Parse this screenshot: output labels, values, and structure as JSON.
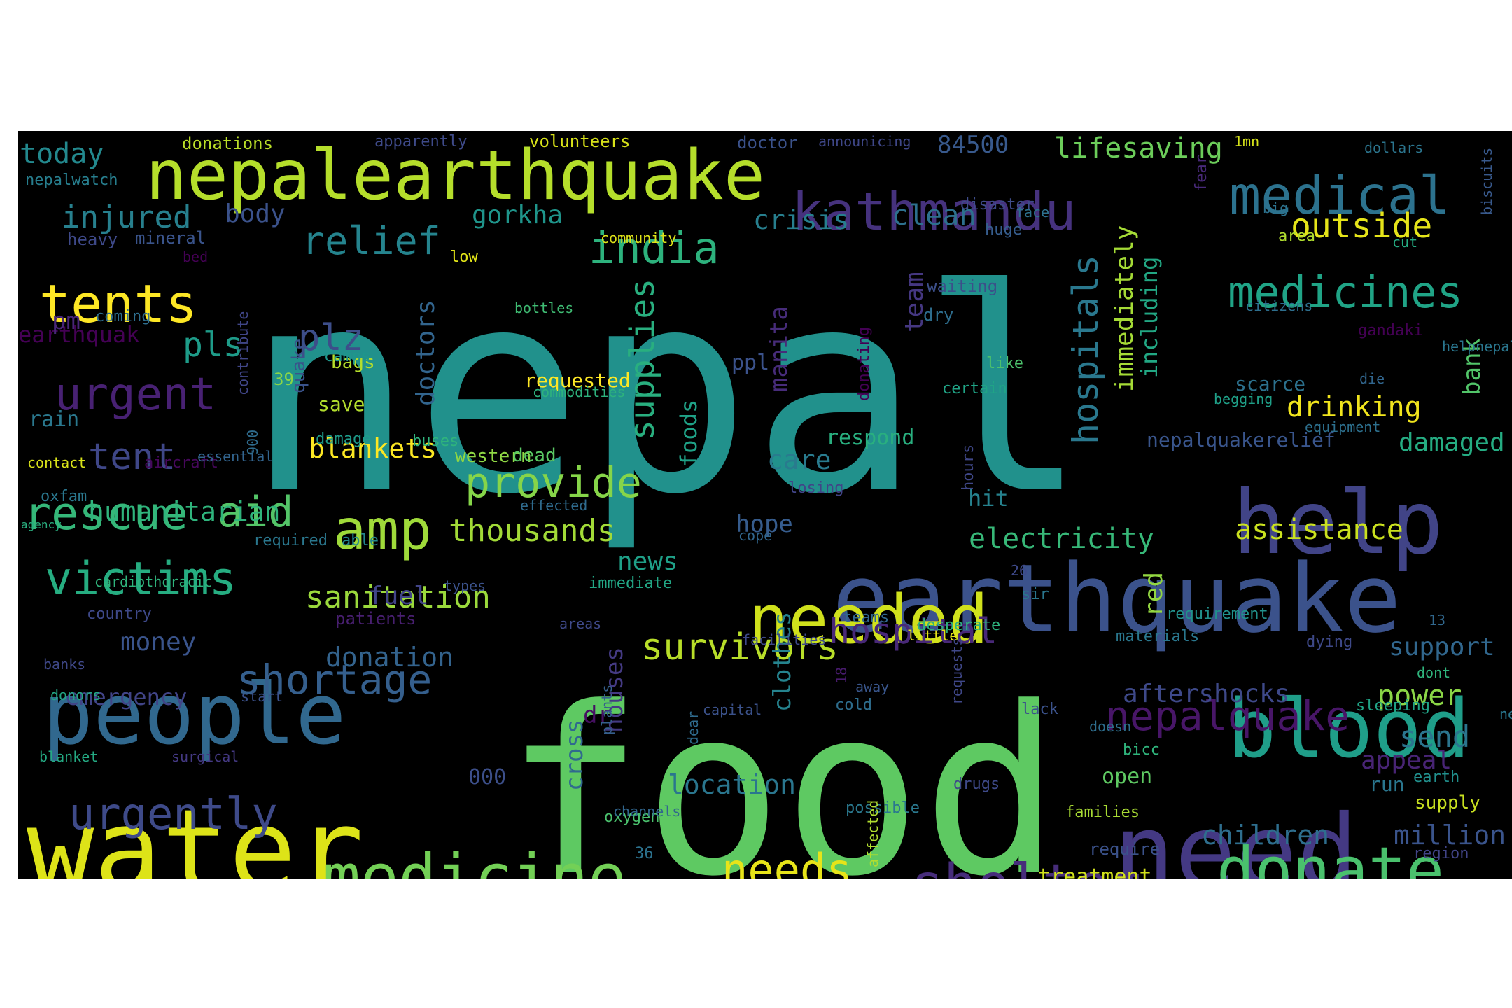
{
  "figure": {
    "background": "#000000",
    "page_background": "#ffffff",
    "colormap": "viridis"
  },
  "words": [
    {
      "text": "nepal",
      "color": "#21918c"
    },
    {
      "text": "food",
      "color": "#5ec962"
    },
    {
      "text": "water",
      "color": "#dde318"
    },
    {
      "text": "earthquake",
      "color": "#3b528b"
    },
    {
      "text": "need",
      "color": "#443983"
    },
    {
      "text": "people",
      "color": "#31688e"
    },
    {
      "text": "help",
      "color": "#414487"
    },
    {
      "text": "blood",
      "color": "#1f9e89"
    },
    {
      "text": "nepalearthquake",
      "color": "#b5de2b"
    },
    {
      "text": "kathmandu",
      "color": "#46327e"
    },
    {
      "text": "medical",
      "color": "#2c728e"
    },
    {
      "text": "needed",
      "color": "#d0e11c"
    },
    {
      "text": "donate",
      "color": "#4ac16d"
    },
    {
      "text": "medicine",
      "color": "#73d056"
    },
    {
      "text": "shelter",
      "color": "#472d7b"
    },
    {
      "text": "amp",
      "color": "#9fda3a"
    },
    {
      "text": "tents",
      "color": "#fde725"
    },
    {
      "text": "urgent",
      "color": "#482173"
    },
    {
      "text": "rescue",
      "color": "#35b779"
    },
    {
      "text": "victims",
      "color": "#26ad81"
    },
    {
      "text": "urgently",
      "color": "#3e4a89"
    },
    {
      "text": "medicines",
      "color": "#20a486"
    },
    {
      "text": "india",
      "color": "#2db27d"
    },
    {
      "text": "relief",
      "color": "#25848e"
    },
    {
      "text": "outside",
      "color": "#e5e419"
    },
    {
      "text": "needs",
      "color": "#e7e419"
    },
    {
      "text": "provide",
      "color": "#86d549"
    },
    {
      "text": "shortage",
      "color": "#355f8d"
    },
    {
      "text": "survivors",
      "color": "#b8de29"
    },
    {
      "text": "nepalquake",
      "color": "#481668"
    },
    {
      "text": "supplies",
      "color": "#29af7f"
    },
    {
      "text": "hospitals",
      "color": "#2a788e"
    },
    {
      "text": "hospital",
      "color": "#482878"
    },
    {
      "text": "tent",
      "color": "#3f4788"
    },
    {
      "text": "aid",
      "color": "#54c568"
    },
    {
      "text": "plz",
      "color": "#3d4e8a"
    },
    {
      "text": "pls",
      "color": "#1e9c89"
    },
    {
      "text": "injured",
      "color": "#27808e"
    },
    {
      "text": "sanitation",
      "color": "#9bd93c"
    },
    {
      "text": "thousands",
      "color": "#a2da37"
    },
    {
      "text": "electricity",
      "color": "#37b878"
    },
    {
      "text": "assistance",
      "color": "#cae11f"
    },
    {
      "text": "drinking",
      "color": "#f1e51d"
    },
    {
      "text": "lifesaving",
      "color": "#6ccd5a"
    },
    {
      "text": "humanitarian",
      "color": "#2fb47c"
    },
    {
      "text": "blankets",
      "color": "#fbe723"
    },
    {
      "text": "today",
      "color": "#23898e"
    },
    {
      "text": "donation",
      "color": "#33638d"
    },
    {
      "text": "crisis",
      "color": "#277f8e"
    },
    {
      "text": "clean",
      "color": "#2d708e"
    },
    {
      "text": "gorkha",
      "color": "#1f958b"
    },
    {
      "text": "body",
      "color": "#3b528b"
    },
    {
      "text": "team",
      "color": "#453781"
    },
    {
      "text": "doctors",
      "color": "#32658e"
    },
    {
      "text": "immediately",
      "color": "#a5db36"
    },
    {
      "text": "including",
      "color": "#22a884"
    },
    {
      "text": "84500",
      "color": "#38598c"
    },
    {
      "text": "care",
      "color": "#297b8e"
    },
    {
      "text": "hope",
      "color": "#365c8d"
    },
    {
      "text": "news",
      "color": "#1fa088"
    },
    {
      "text": "money",
      "color": "#3a548c"
    },
    {
      "text": "emergency",
      "color": "#414487"
    },
    {
      "text": "support",
      "color": "#31678e"
    },
    {
      "text": "power",
      "color": "#8bd646"
    },
    {
      "text": "send",
      "color": "#2b758e"
    },
    {
      "text": "appeal",
      "color": "#482475"
    },
    {
      "text": "aftershocks",
      "color": "#3e4989"
    },
    {
      "text": "damaged",
      "color": "#25ac82"
    },
    {
      "text": "children",
      "color": "#2e6e8e"
    },
    {
      "text": "million",
      "color": "#3a548c"
    },
    {
      "text": "location",
      "color": "#2a768e"
    },
    {
      "text": "clothes",
      "color": "#25838e"
    },
    {
      "text": "houses",
      "color": "#443a83"
    },
    {
      "text": "cross",
      "color": "#306a8e"
    },
    {
      "text": "fuel",
      "color": "#414487"
    },
    {
      "text": "dr",
      "color": "#471063"
    },
    {
      "text": "red",
      "color": "#93d741"
    },
    {
      "text": "bank",
      "color": "#52c569"
    },
    {
      "text": "manita",
      "color": "#472c7a"
    },
    {
      "text": "foods",
      "color": "#1fa287"
    },
    {
      "text": "earthquak",
      "color": "#440154"
    },
    {
      "text": "pm",
      "color": "#482677"
    },
    {
      "text": "rain",
      "color": "#2a788e"
    },
    {
      "text": "ppl",
      "color": "#3b528b"
    },
    {
      "text": "respond",
      "color": "#29af7f"
    },
    {
      "text": "hit",
      "color": "#26828e"
    },
    {
      "text": "000",
      "color": "#3c4f8a"
    },
    {
      "text": "nepalquakerelief",
      "color": "#39558c"
    },
    {
      "text": "scarce",
      "color": "#2c718e"
    },
    {
      "text": "open",
      "color": "#5ec962"
    },
    {
      "text": "run",
      "color": "#2a768e"
    },
    {
      "text": "supply",
      "color": "#c8e020"
    },
    {
      "text": "treatment",
      "color": "#d2e21b"
    },
    {
      "text": "requested",
      "color": "#fde725"
    },
    {
      "text": "western",
      "color": "#8fd744"
    },
    {
      "text": "dead",
      "color": "#5ac864"
    },
    {
      "text": "save",
      "color": "#b2dd2d"
    },
    {
      "text": "quake",
      "color": "#3a538b"
    },
    {
      "text": "bags",
      "color": "#b5de2b"
    },
    {
      "text": "39",
      "color": "#89d548"
    },
    {
      "text": "camps",
      "color": "#1f968b"
    },
    {
      "text": "damage",
      "color": "#1e9b8a"
    },
    {
      "text": "buses",
      "color": "#2fb47c"
    },
    {
      "text": "donations",
      "color": "#bade28"
    },
    {
      "text": "apparently",
      "color": "#3e4a89"
    },
    {
      "text": "volunteers",
      "color": "#d8e219"
    },
    {
      "text": "doctor",
      "color": "#3b528b"
    },
    {
      "text": "announicing",
      "color": "#3f4788"
    },
    {
      "text": "1mn",
      "color": "#d5e21a"
    },
    {
      "text": "dollars",
      "color": "#2b758e"
    },
    {
      "text": "biscuits",
      "color": "#38598c"
    },
    {
      "text": "nepalwatch",
      "color": "#277e8e"
    },
    {
      "text": "heavy",
      "color": "#3e4989"
    },
    {
      "text": "mineral",
      "color": "#3a548c"
    },
    {
      "text": "bed",
      "color": "#440154"
    },
    {
      "text": "community",
      "color": "#dfe318"
    },
    {
      "text": "low",
      "color": "#e2e418"
    },
    {
      "text": "coming",
      "color": "#2e6e8e"
    },
    {
      "text": "bottles",
      "color": "#3fbc73"
    },
    {
      "text": "commodities",
      "color": "#2db27d"
    },
    {
      "text": "contribute",
      "color": "#404688"
    },
    {
      "text": "certain",
      "color": "#20a486"
    },
    {
      "text": "like",
      "color": "#4cc26c"
    },
    {
      "text": "dry",
      "color": "#2e6e8e"
    },
    {
      "text": "waiting",
      "color": "#3c4f8a"
    },
    {
      "text": "disaster",
      "color": "#3e4c8a"
    },
    {
      "text": "face",
      "color": "#2d708e"
    },
    {
      "text": "huge",
      "color": "#365d8d"
    },
    {
      "text": "fear",
      "color": "#482979"
    },
    {
      "text": "big",
      "color": "#2c728e"
    },
    {
      "text": "cut",
      "color": "#25ab82"
    },
    {
      "text": "area",
      "color": "#b0dd2f"
    },
    {
      "text": "citizens",
      "color": "#2e6f8e"
    },
    {
      "text": "gandaki",
      "color": "#440154"
    },
    {
      "text": "helpnepal",
      "color": "#2a768e"
    },
    {
      "text": "die",
      "color": "#31668e"
    },
    {
      "text": "begging",
      "color": "#1fa088"
    },
    {
      "text": "equipment",
      "color": "#2d708e"
    },
    {
      "text": "donating",
      "color": "#440154"
    },
    {
      "text": "hours",
      "color": "#3f4788"
    },
    {
      "text": "losing",
      "color": "#414487"
    },
    {
      "text": "cope",
      "color": "#31668e"
    },
    {
      "text": "effected",
      "color": "#2f6b8e"
    },
    {
      "text": "contact",
      "color": "#d8e219"
    },
    {
      "text": "aircraft",
      "color": "#46085c"
    },
    {
      "text": "essential",
      "color": "#32648e"
    },
    {
      "text": "900",
      "color": "#2f6c8e"
    },
    {
      "text": "oxfam",
      "color": "#2a778e"
    },
    {
      "text": "agency",
      "color": "#29af7f"
    },
    {
      "text": "required",
      "color": "#2a778e"
    },
    {
      "text": "able",
      "color": "#24878e"
    },
    {
      "text": "cardiothoracic",
      "color": "#2fb47c"
    },
    {
      "text": "country",
      "color": "#3e4989"
    },
    {
      "text": "banks",
      "color": "#3f4889"
    },
    {
      "text": "donors",
      "color": "#22a785"
    },
    {
      "text": "start",
      "color": "#3b518b"
    },
    {
      "text": "blanket",
      "color": "#24aa83"
    },
    {
      "text": "surgical",
      "color": "#443983"
    },
    {
      "text": "types",
      "color": "#3b528b"
    },
    {
      "text": "immediate",
      "color": "#22a785"
    },
    {
      "text": "areas",
      "color": "#3e4989"
    },
    {
      "text": "patients",
      "color": "#481f70"
    },
    {
      "text": "26",
      "color": "#3e4989"
    },
    {
      "text": "sir",
      "color": "#2a778e"
    },
    {
      "text": "teams",
      "color": "#31688e"
    },
    {
      "text": "facilities",
      "color": "#3e4a89"
    },
    {
      "text": "little",
      "color": "#e5e419"
    },
    {
      "text": "desperate",
      "color": "#2db27d"
    },
    {
      "text": "materials",
      "color": "#2a778e"
    },
    {
      "text": "18",
      "color": "#481b6d"
    },
    {
      "text": "away",
      "color": "#39568c"
    },
    {
      "text": "cold",
      "color": "#2e6e8e"
    },
    {
      "text": "requests",
      "color": "#3f4788"
    },
    {
      "text": "lack",
      "color": "#3b528b"
    },
    {
      "text": "doesn",
      "color": "#2e6e8e"
    },
    {
      "text": "sleeping",
      "color": "#20a386"
    },
    {
      "text": "dont",
      "color": "#2fb47c"
    },
    {
      "text": "ne",
      "color": "#2a778e"
    },
    {
      "text": "capital",
      "color": "#3b528b"
    },
    {
      "text": "dear",
      "color": "#2f6b8e"
    },
    {
      "text": "plants",
      "color": "#355f8d"
    },
    {
      "text": "bicc",
      "color": "#2fb47c"
    },
    {
      "text": "oxygen",
      "color": "#4ac16d"
    },
    {
      "text": "channels",
      "color": "#31668e"
    },
    {
      "text": "possible",
      "color": "#2a788e"
    },
    {
      "text": "drugs",
      "color": "#3e4a89"
    },
    {
      "text": "earth",
      "color": "#21908d"
    },
    {
      "text": "families",
      "color": "#a8db34"
    },
    {
      "text": "require",
      "color": "#3b528b"
    },
    {
      "text": "region",
      "color": "#414487"
    },
    {
      "text": "36",
      "color": "#2c728e"
    },
    {
      "text": "affected",
      "color": "#b0dd2f"
    },
    {
      "text": "displaced",
      "color": "#440154"
    },
    {
      "text": "homes",
      "color": "#27ad81"
    },
    {
      "text": "debris",
      "color": "#482878"
    },
    {
      "text": "access",
      "color": "#2a788e"
    },
    {
      "text": "requirement",
      "color": "#21918c"
    },
    {
      "text": "dying",
      "color": "#3e4989"
    },
    {
      "text": "13",
      "color": "#31688e"
    }
  ]
}
